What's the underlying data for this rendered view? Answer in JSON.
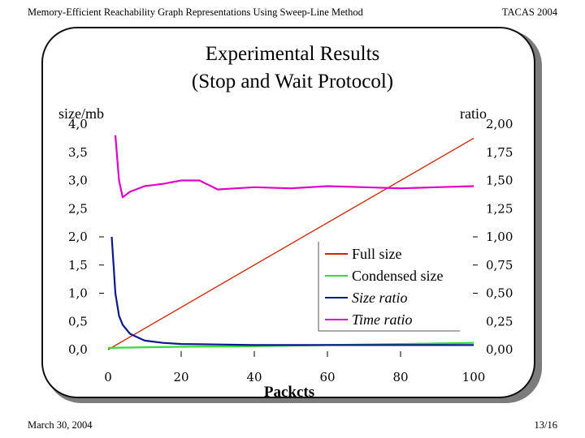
{
  "header": {
    "left": "Memory-Efficient Reachability Graph Representations Using Sweep-Line Method",
    "right": "TACAS 2004"
  },
  "footer": {
    "date": "March 30, 2004",
    "page": "13/16"
  },
  "slide": {
    "title_line1": "Experimental Results",
    "title_line2": "(Stop and Wait Protocol)"
  },
  "chart_data": {
    "type": "line",
    "xlabel": "Packcts",
    "ylabel_left": "size/mb",
    "ylabel_right": "ratio",
    "xlim": [
      0,
      100
    ],
    "ylim_left": [
      0,
      4
    ],
    "ylim_right": [
      0,
      2
    ],
    "x_ticks": [
      "0",
      "20",
      "40",
      "60",
      "80",
      "100"
    ],
    "y_left_ticks": [
      "0,0",
      "0,5",
      "1,0",
      "1,5",
      "2,0",
      "2,5",
      "3,0",
      "3,5",
      "4,0"
    ],
    "y_right_ticks": [
      "0,00",
      "0,25",
      "0,50",
      "0,75",
      "1,00",
      "1,25",
      "1,50",
      "1,75",
      "2,00"
    ],
    "legend_position": "center-right",
    "grid": false,
    "series": [
      {
        "name": "Full size",
        "axis": "left",
        "color": "#cc2200",
        "x": [
          0,
          100
        ],
        "y": [
          0,
          3.75
        ]
      },
      {
        "name": "Condensed size",
        "axis": "left",
        "color": "#33dd33",
        "x": [
          0,
          20,
          40,
          60,
          80,
          100
        ],
        "y": [
          0.03,
          0.05,
          0.06,
          0.08,
          0.1,
          0.12
        ]
      },
      {
        "name": "Size ratio",
        "axis": "right",
        "color": "#0a1a8c",
        "x": [
          1,
          1.5,
          2,
          3,
          4,
          6,
          8,
          10,
          15,
          20,
          30,
          40,
          60,
          80,
          100
        ],
        "y": [
          1.0,
          0.75,
          0.5,
          0.3,
          0.22,
          0.14,
          0.11,
          0.08,
          0.06,
          0.05,
          0.045,
          0.04,
          0.04,
          0.04,
          0.04
        ]
      },
      {
        "name": "Time ratio",
        "axis": "right",
        "color": "#dd00cc",
        "x": [
          2,
          3,
          4,
          6,
          10,
          15,
          20,
          25,
          30,
          35,
          40,
          50,
          60,
          70,
          80,
          90,
          100
        ],
        "y": [
          1.9,
          1.5,
          1.35,
          1.4,
          1.45,
          1.47,
          1.5,
          1.5,
          1.42,
          1.43,
          1.44,
          1.43,
          1.45,
          1.44,
          1.43,
          1.44,
          1.45
        ]
      }
    ]
  }
}
